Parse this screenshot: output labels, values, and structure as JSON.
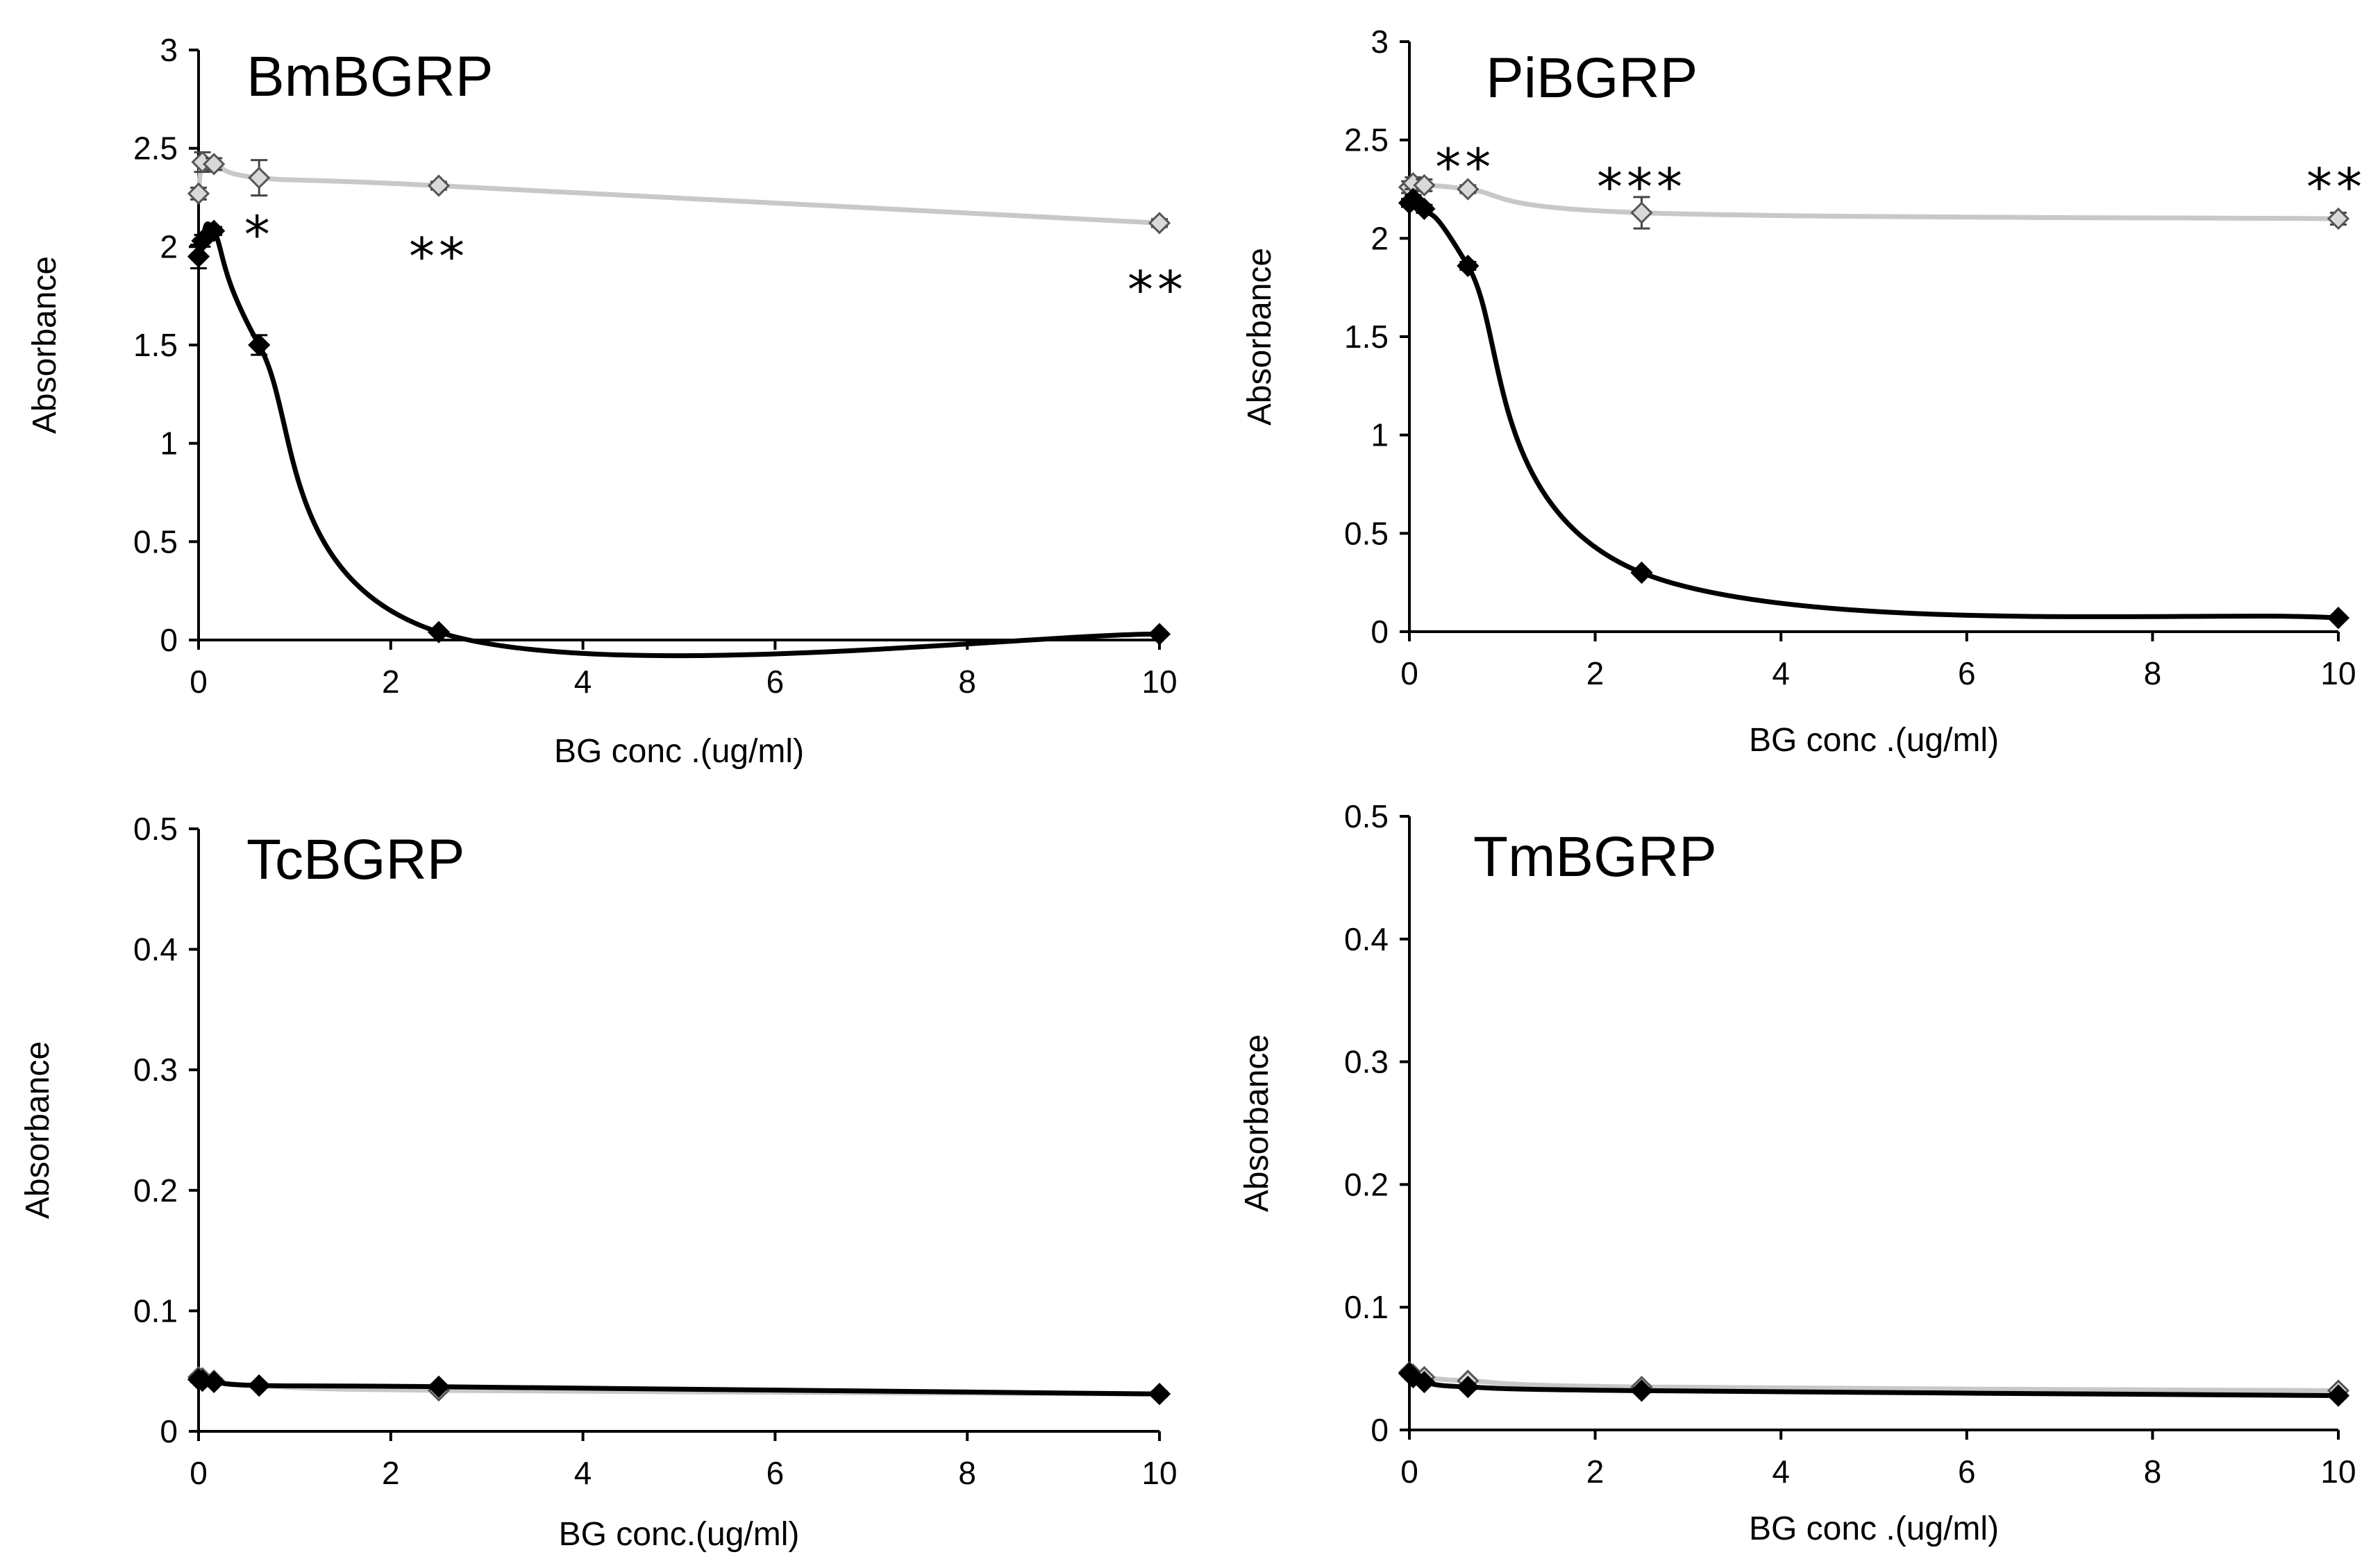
{
  "figure": {
    "colors": {
      "treated": "#c8c8c8",
      "control": "#000000",
      "treated_marker_fill": "#d9d9d9",
      "treated_marker_stroke": "#555555"
    },
    "legend": "none"
  },
  "chart_data": [
    {
      "type": "line",
      "title": "BmBGRP",
      "xlabel": "BG conc .(ug/ml)",
      "ylabel": "Absorbance",
      "xlim": [
        0,
        10
      ],
      "ylim": [
        0,
        3
      ],
      "xticks": [
        "0",
        "2",
        "4",
        "6",
        "8",
        "10"
      ],
      "yticks": [
        "0",
        "0.5",
        "1",
        "1.5",
        "2",
        "2.5",
        "3"
      ],
      "grid": false,
      "series": [
        {
          "name": "light",
          "color": "#c8c8c8",
          "x": [
            0,
            0.04,
            0.16,
            0.63,
            2.5,
            10
          ],
          "y": [
            2.27,
            2.43,
            2.42,
            2.35,
            2.31,
            2.12
          ],
          "err": [
            0.03,
            0.05,
            0.03,
            0.09,
            0.02,
            0.02
          ]
        },
        {
          "name": "dark",
          "color": "#000000",
          "x": [
            0,
            0.04,
            0.16,
            0.63,
            2.5,
            10
          ],
          "y": [
            1.95,
            2.03,
            2.08,
            1.5,
            0.04,
            0.03
          ],
          "err": [
            0.06,
            0.03,
            0.02,
            0.05,
            0.01,
            0.01
          ]
        }
      ],
      "annotations": [
        {
          "text": "*",
          "x": 0.63,
          "y": 2.08
        },
        {
          "text": "**",
          "x": 2.5,
          "y": 1.97
        },
        {
          "text": "**",
          "x": 10,
          "y": 1.8
        }
      ]
    },
    {
      "type": "line",
      "title": "PiBGRP",
      "xlabel": "BG conc .(ug/ml)",
      "ylabel": "Absorbance",
      "xlim": [
        0,
        10
      ],
      "ylim": [
        0,
        3
      ],
      "xticks": [
        "0",
        "2",
        "4",
        "6",
        "8",
        "10"
      ],
      "yticks": [
        "0",
        "0.5",
        "1",
        "1.5",
        "2",
        "2.5",
        "3"
      ],
      "grid": false,
      "series": [
        {
          "name": "light",
          "color": "#c8c8c8",
          "x": [
            0,
            0.04,
            0.16,
            0.63,
            2.5,
            10
          ],
          "y": [
            2.26,
            2.28,
            2.27,
            2.25,
            2.13,
            2.1
          ],
          "err": [
            0.03,
            0.03,
            0.03,
            0.02,
            0.08,
            0.03
          ]
        },
        {
          "name": "dark",
          "color": "#000000",
          "x": [
            0,
            0.04,
            0.16,
            0.63,
            2.5,
            10
          ],
          "y": [
            2.18,
            2.2,
            2.15,
            1.86,
            0.3,
            0.07
          ],
          "err": [
            0.02,
            0.02,
            0.02,
            0.02,
            0.01,
            0.01
          ]
        }
      ],
      "annotations": [
        {
          "text": "**",
          "x": 0.6,
          "y": 2.38
        },
        {
          "text": "***",
          "x": 2.5,
          "y": 2.28
        },
        {
          "text": "**",
          "x": 10,
          "y": 2.28
        }
      ]
    },
    {
      "type": "line",
      "title": "TcBGRP",
      "xlabel": "BG conc.(ug/ml)",
      "ylabel": "Absorbance",
      "xlim": [
        0,
        10
      ],
      "ylim": [
        0,
        0.5
      ],
      "xticks": [
        "0",
        "2",
        "4",
        "6",
        "8",
        "10"
      ],
      "yticks": [
        "0",
        "0.1",
        "0.2",
        "0.3",
        "0.4",
        "0.5"
      ],
      "grid": false,
      "series": [
        {
          "name": "light",
          "color": "#c8c8c8",
          "x": [
            0,
            0.04,
            0.16,
            0.63,
            2.5,
            10
          ],
          "y": [
            0.045,
            0.044,
            0.042,
            0.038,
            0.034,
            0.031
          ],
          "err": [
            0.002,
            0.002,
            0.002,
            0.002,
            0.002,
            0.002
          ]
        },
        {
          "name": "dark",
          "color": "#000000",
          "x": [
            0,
            0.04,
            0.16,
            0.63,
            2.5,
            10
          ],
          "y": [
            0.043,
            0.042,
            0.041,
            0.038,
            0.037,
            0.031
          ],
          "err": [
            0.002,
            0.002,
            0.002,
            0.002,
            0.002,
            0.002
          ]
        }
      ],
      "annotations": []
    },
    {
      "type": "line",
      "title": "TmBGRP",
      "xlabel": "BG conc .(ug/ml)",
      "ylabel": "Absorbance",
      "xlim": [
        0,
        10
      ],
      "ylim": [
        0,
        0.5
      ],
      "xticks": [
        "0",
        "2",
        "4",
        "6",
        "8",
        "10"
      ],
      "yticks": [
        "0",
        "0.1",
        "0.2",
        "0.3",
        "0.4",
        "0.5"
      ],
      "grid": false,
      "series": [
        {
          "name": "light",
          "color": "#c8c8c8",
          "x": [
            0,
            0.04,
            0.16,
            0.63,
            2.5,
            10
          ],
          "y": [
            0.047,
            0.045,
            0.043,
            0.04,
            0.035,
            0.032
          ],
          "err": [
            0.002,
            0.002,
            0.002,
            0.002,
            0.002,
            0.002
          ]
        },
        {
          "name": "dark",
          "color": "#000000",
          "x": [
            0,
            0.04,
            0.16,
            0.63,
            2.5,
            10
          ],
          "y": [
            0.046,
            0.043,
            0.039,
            0.035,
            0.032,
            0.028
          ],
          "err": [
            0.002,
            0.002,
            0.002,
            0.002,
            0.002,
            0.002
          ]
        }
      ],
      "annotations": []
    }
  ]
}
